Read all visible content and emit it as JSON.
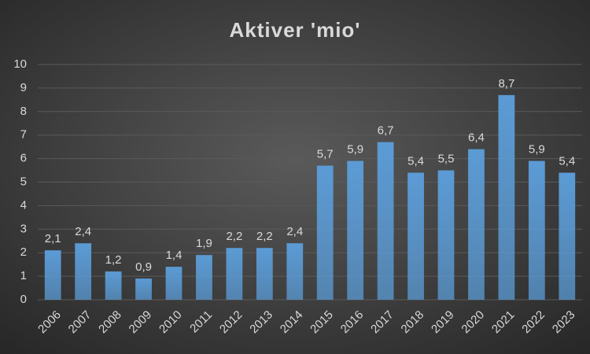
{
  "chart_data": {
    "type": "bar",
    "title": "Aktiver 'mio'",
    "categories": [
      "2006",
      "2007",
      "2008",
      "2009",
      "2010",
      "2011",
      "2012",
      "2013",
      "2014",
      "2015",
      "2016",
      "2017",
      "2018",
      "2019",
      "2020",
      "2021",
      "2022",
      "2023"
    ],
    "values": [
      2.1,
      2.4,
      1.2,
      0.9,
      1.4,
      1.9,
      2.2,
      2.2,
      2.4,
      5.7,
      5.9,
      6.7,
      5.4,
      5.5,
      6.4,
      8.7,
      5.9,
      5.4
    ],
    "value_labels": [
      "2,1",
      "2,4",
      "1,2",
      "0,9",
      "1,4",
      "1,9",
      "2,2",
      "2,2",
      "2,4",
      "5,7",
      "5,9",
      "6,7",
      "5,4",
      "5,5",
      "6,4",
      "8,7",
      "5,9",
      "5,4"
    ],
    "color": "#5b9bd5",
    "ylim": [
      0,
      10
    ],
    "yticks": [
      0,
      1,
      2,
      3,
      4,
      5,
      6,
      7,
      8,
      9,
      10
    ],
    "grid": true
  }
}
